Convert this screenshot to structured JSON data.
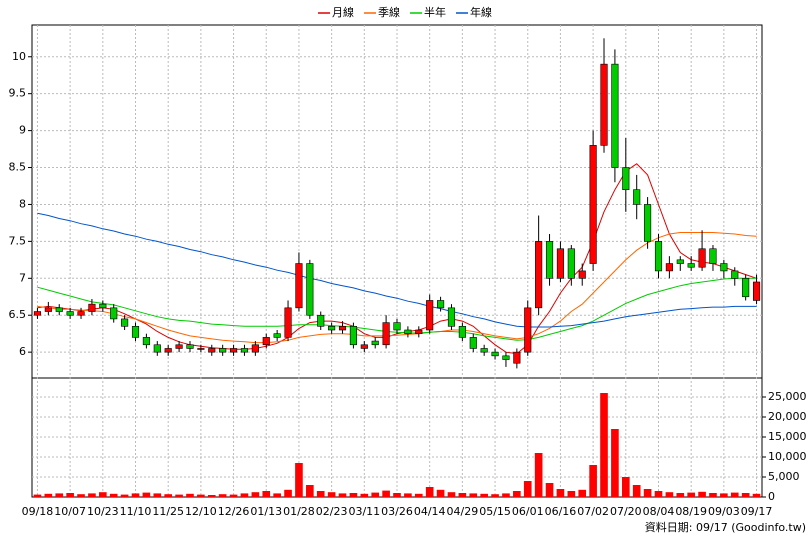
{
  "chart_data": {
    "type": "candlestick",
    "legend": "top",
    "grid": true,
    "up_color": "#ff0000",
    "down_color": "#00cc00",
    "footer": "資料日期: 09/17  (Goodinfo.tw)",
    "categories": [
      "09/18",
      null,
      null,
      "10/07",
      null,
      null,
      "10/23",
      null,
      null,
      "11/10",
      null,
      null,
      "11/25",
      null,
      null,
      "12/10",
      null,
      null,
      "12/26",
      null,
      null,
      "01/13",
      null,
      null,
      "01/28",
      null,
      null,
      "02/23",
      null,
      null,
      "03/11",
      null,
      null,
      "03/26",
      null,
      null,
      "04/14",
      null,
      null,
      "04/29",
      null,
      null,
      "05/15",
      null,
      null,
      "06/01",
      null,
      null,
      "06/16",
      null,
      null,
      "07/02",
      null,
      null,
      "07/20",
      null,
      null,
      "08/04",
      null,
      null,
      "08/19",
      null,
      null,
      "09/03",
      null,
      null,
      "09/17"
    ],
    "open": [
      6.5,
      6.55,
      6.6,
      6.55,
      6.5,
      6.55,
      6.65,
      6.6,
      6.45,
      6.35,
      6.2,
      6.1,
      6.0,
      6.05,
      6.1,
      6.05,
      6.0,
      6.05,
      6.0,
      6.05,
      6.0,
      6.1,
      6.25,
      6.2,
      6.6,
      7.2,
      6.5,
      6.35,
      6.3,
      6.35,
      6.05,
      6.15,
      6.1,
      6.4,
      6.3,
      6.25,
      6.3,
      6.7,
      6.6,
      6.35,
      6.2,
      6.05,
      6.0,
      5.95,
      5.85,
      6.0,
      6.6,
      7.5,
      7.0,
      7.4,
      7.0,
      7.2,
      8.8,
      9.9,
      8.5,
      8.2,
      8.0,
      7.5,
      7.1,
      7.25,
      7.2,
      7.15,
      7.4,
      7.2,
      7.1,
      7.0,
      6.7
    ],
    "high": [
      6.6,
      6.68,
      6.65,
      6.6,
      6.6,
      6.72,
      6.7,
      6.65,
      6.5,
      6.4,
      6.25,
      6.15,
      6.1,
      6.15,
      6.15,
      6.1,
      6.1,
      6.1,
      6.1,
      6.1,
      6.15,
      6.25,
      6.3,
      6.7,
      7.35,
      7.25,
      6.55,
      6.4,
      6.42,
      6.4,
      6.15,
      6.2,
      6.5,
      6.45,
      6.35,
      6.35,
      6.78,
      6.75,
      6.65,
      6.4,
      6.25,
      6.1,
      6.05,
      6.0,
      6.05,
      6.7,
      7.85,
      7.6,
      7.5,
      7.45,
      7.2,
      9.0,
      10.25,
      10.1,
      8.9,
      8.4,
      8.1,
      7.6,
      7.3,
      7.3,
      7.3,
      7.65,
      7.45,
      7.25,
      7.15,
      7.05,
      7.05
    ],
    "low": [
      6.45,
      6.5,
      6.5,
      6.45,
      6.45,
      6.5,
      6.55,
      6.4,
      6.3,
      6.15,
      6.05,
      5.95,
      5.95,
      6.0,
      6.0,
      6.0,
      5.95,
      5.95,
      5.95,
      5.95,
      5.95,
      6.05,
      6.15,
      6.15,
      6.55,
      6.45,
      6.3,
      6.25,
      6.25,
      6.05,
      6.0,
      6.05,
      6.05,
      6.25,
      6.2,
      6.2,
      6.25,
      6.55,
      6.3,
      6.15,
      6.0,
      5.95,
      5.9,
      5.8,
      5.78,
      5.95,
      6.5,
      6.9,
      6.95,
      6.9,
      6.9,
      7.1,
      8.7,
      8.3,
      7.9,
      7.8,
      7.4,
      7.0,
      7.0,
      7.1,
      7.1,
      7.1,
      7.1,
      7.0,
      6.9,
      6.7,
      6.65
    ],
    "close": [
      6.55,
      6.6,
      6.55,
      6.5,
      6.55,
      6.65,
      6.6,
      6.45,
      6.35,
      6.2,
      6.1,
      6.0,
      6.05,
      6.1,
      6.05,
      6.05,
      6.05,
      6.0,
      6.05,
      6.0,
      6.1,
      6.2,
      6.2,
      6.6,
      7.2,
      6.5,
      6.35,
      6.3,
      6.35,
      6.1,
      6.1,
      6.1,
      6.4,
      6.3,
      6.25,
      6.3,
      6.7,
      6.6,
      6.35,
      6.2,
      6.05,
      6.0,
      5.95,
      5.9,
      6.0,
      6.6,
      7.5,
      7.0,
      7.4,
      7.0,
      7.1,
      8.8,
      9.9,
      8.5,
      8.2,
      8.0,
      7.5,
      7.1,
      7.2,
      7.2,
      7.15,
      7.4,
      7.2,
      7.1,
      7.0,
      6.75,
      6.95
    ],
    "ylim": [
      5.65,
      10.43
    ],
    "yticks": [
      6,
      6.5,
      7,
      7.5,
      8,
      8.5,
      9,
      9.5,
      10
    ],
    "lines": [
      {
        "name": "月線",
        "color": "#dd0000",
        "values": [
          6.6,
          6.62,
          6.6,
          6.58,
          6.56,
          6.58,
          6.6,
          6.58,
          6.52,
          6.45,
          6.38,
          6.28,
          6.2,
          6.14,
          6.1,
          6.08,
          6.06,
          6.05,
          6.04,
          6.04,
          6.05,
          6.08,
          6.12,
          6.2,
          6.32,
          6.4,
          6.42,
          6.42,
          6.4,
          6.35,
          6.25,
          6.2,
          6.2,
          6.25,
          6.28,
          6.3,
          6.35,
          6.42,
          6.45,
          6.42,
          6.35,
          6.22,
          6.1,
          6.0,
          5.98,
          6.1,
          6.35,
          6.55,
          6.8,
          7.0,
          7.15,
          7.5,
          7.9,
          8.2,
          8.45,
          8.55,
          8.4,
          8.0,
          7.6,
          7.35,
          7.25,
          7.22,
          7.2,
          7.15,
          7.1,
          7.05,
          7.0
        ]
      },
      {
        "name": "季線",
        "color": "#ff6600",
        "values": [
          6.62,
          6.6,
          6.58,
          6.58,
          6.57,
          6.56,
          6.55,
          6.52,
          6.48,
          6.45,
          6.4,
          6.35,
          6.3,
          6.26,
          6.22,
          6.2,
          6.18,
          6.16,
          6.15,
          6.14,
          6.13,
          6.13,
          6.14,
          6.16,
          6.2,
          6.22,
          6.24,
          6.25,
          6.25,
          6.24,
          6.22,
          6.22,
          6.22,
          6.23,
          6.24,
          6.25,
          6.27,
          6.28,
          6.3,
          6.3,
          6.28,
          6.25,
          6.22,
          6.2,
          6.18,
          6.2,
          6.25,
          6.32,
          6.42,
          6.55,
          6.65,
          6.8,
          6.95,
          7.1,
          7.25,
          7.38,
          7.48,
          7.55,
          7.6,
          7.62,
          7.62,
          7.62,
          7.62,
          7.61,
          7.6,
          7.58,
          7.57
        ]
      },
      {
        "name": "半年",
        "color": "#00cc00",
        "values": [
          6.88,
          6.84,
          6.8,
          6.76,
          6.72,
          6.68,
          6.66,
          6.64,
          6.6,
          6.56,
          6.52,
          6.48,
          6.45,
          6.43,
          6.42,
          6.4,
          6.38,
          6.37,
          6.36,
          6.35,
          6.35,
          6.35,
          6.35,
          6.36,
          6.37,
          6.37,
          6.37,
          6.36,
          6.35,
          6.34,
          6.32,
          6.3,
          6.28,
          6.27,
          6.26,
          6.26,
          6.27,
          6.28,
          6.28,
          6.27,
          6.25,
          6.22,
          6.2,
          6.18,
          6.16,
          6.17,
          6.2,
          6.24,
          6.28,
          6.32,
          6.36,
          6.42,
          6.5,
          6.58,
          6.66,
          6.72,
          6.78,
          6.82,
          6.86,
          6.9,
          6.93,
          6.95,
          6.97,
          6.99,
          7.0,
          7.0,
          7.0
        ]
      },
      {
        "name": "年線",
        "color": "#0055cc",
        "values": [
          7.88,
          7.85,
          7.81,
          7.78,
          7.74,
          7.71,
          7.67,
          7.64,
          7.6,
          7.57,
          7.53,
          7.5,
          7.46,
          7.43,
          7.39,
          7.36,
          7.32,
          7.29,
          7.25,
          7.22,
          7.18,
          7.15,
          7.11,
          7.08,
          7.04,
          7.0,
          6.97,
          6.93,
          6.9,
          6.87,
          6.83,
          6.8,
          6.76,
          6.73,
          6.69,
          6.66,
          6.62,
          6.59,
          6.55,
          6.52,
          6.48,
          6.45,
          6.41,
          6.38,
          6.35,
          6.34,
          6.34,
          6.34,
          6.35,
          6.36,
          6.38,
          6.4,
          6.42,
          6.45,
          6.48,
          6.5,
          6.52,
          6.54,
          6.56,
          6.58,
          6.59,
          6.6,
          6.61,
          6.61,
          6.62,
          6.62,
          6.62
        ]
      }
    ],
    "volume": {
      "color": "#ff0000",
      "ylim": [
        0,
        29750
      ],
      "yticks": [
        0,
        {
          "value": 5000,
          "label": "5,000"
        },
        {
          "value": 10000,
          "label": "10,000"
        },
        {
          "value": 15000,
          "label": "15,000"
        },
        {
          "value": 20000,
          "label": "20,000"
        },
        {
          "value": 25000,
          "label": "25,000"
        }
      ],
      "values": [
        600,
        800,
        900,
        1000,
        700,
        900,
        1200,
        800,
        600,
        900,
        1100,
        900,
        700,
        600,
        800,
        600,
        500,
        700,
        600,
        900,
        1200,
        1500,
        900,
        1800,
        8500,
        3000,
        1500,
        1200,
        900,
        1000,
        800,
        1100,
        1600,
        1000,
        900,
        800,
        2500,
        1800,
        1200,
        1000,
        900,
        800,
        700,
        900,
        1500,
        4000,
        11000,
        3500,
        2000,
        1500,
        1800,
        8000,
        26000,
        17000,
        5000,
        3000,
        2000,
        1500,
        1200,
        1000,
        1100,
        1300,
        1000,
        900,
        1100,
        1000,
        800
      ]
    }
  }
}
